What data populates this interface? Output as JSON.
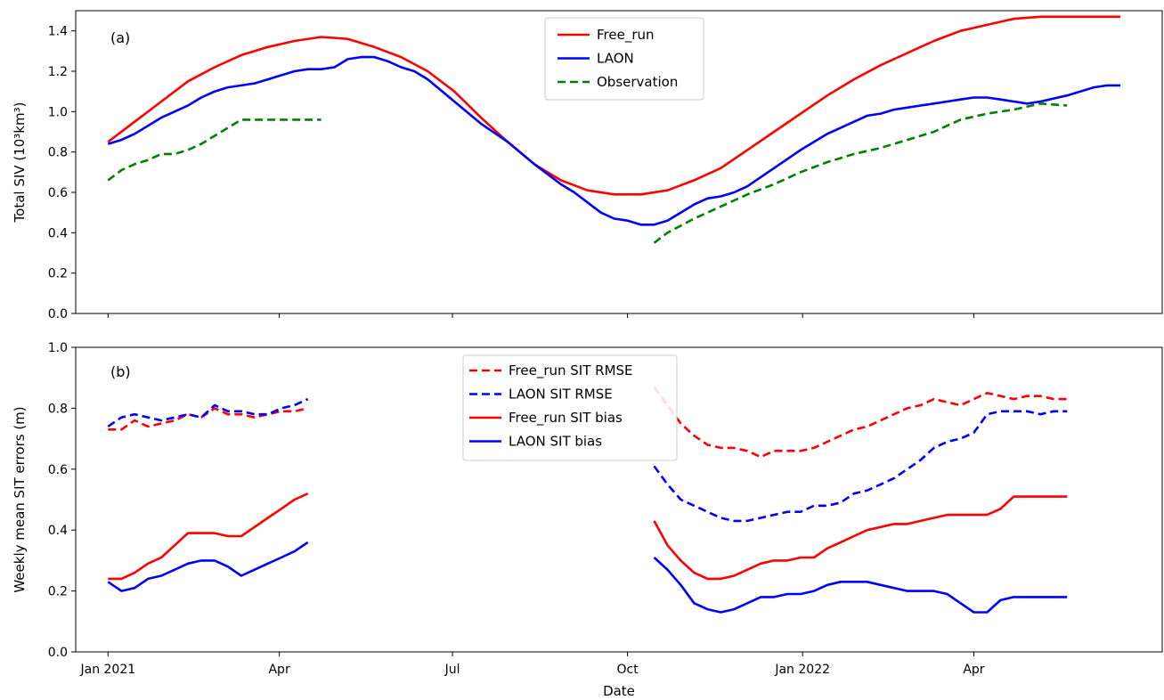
{
  "figure": {
    "xlabel": "Date",
    "x_ticks": [
      "Jan 2021",
      "Apr",
      "Jul",
      "Oct",
      "Jan 2022",
      "Apr"
    ]
  },
  "colors": {
    "free_run": "#ff0000",
    "laon": "#0000ff",
    "observation": "#008000",
    "axis": "#000000",
    "background": "#ffffff"
  },
  "chart_data": [
    {
      "type": "line",
      "panel_label": "(a)",
      "ylabel": "Total SIV (10³km³)",
      "ylim": [
        0,
        1.5
      ],
      "y_ticks": [
        "0.0",
        "0.2",
        "0.4",
        "0.6",
        "0.8",
        "1.0",
        "1.2",
        "1.4"
      ],
      "x_units": "days since Jan 1 2021",
      "xlim": [
        -17,
        554
      ],
      "grid": false,
      "legend_position": "top-center",
      "series": [
        {
          "name": "Free_run",
          "color": "#ff0000",
          "style": "solid",
          "x": [
            0,
            14,
            28,
            42,
            56,
            70,
            84,
            98,
            112,
            126,
            140,
            154,
            168,
            182,
            196,
            210,
            224,
            238,
            252,
            266,
            280,
            294,
            308,
            322,
            336,
            350,
            364,
            378,
            392,
            406,
            420,
            434,
            448,
            462,
            476,
            490,
            504,
            518,
            532
          ],
          "y": [
            0.85,
            0.95,
            1.05,
            1.15,
            1.22,
            1.28,
            1.32,
            1.35,
            1.37,
            1.36,
            1.32,
            1.27,
            1.2,
            1.1,
            0.97,
            0.85,
            0.74,
            0.66,
            0.61,
            0.59,
            0.59,
            0.61,
            0.66,
            0.72,
            0.81,
            0.9,
            0.99,
            1.08,
            1.16,
            1.23,
            1.29,
            1.35,
            1.4,
            1.43,
            1.46,
            1.47,
            1.47,
            1.47,
            1.47
          ]
        },
        {
          "name": "LAON",
          "color": "#0000ff",
          "style": "solid",
          "x": [
            0,
            7,
            14,
            21,
            28,
            35,
            42,
            49,
            56,
            63,
            70,
            77,
            84,
            91,
            98,
            105,
            112,
            119,
            126,
            133,
            140,
            147,
            154,
            161,
            168,
            182,
            196,
            210,
            224,
            231,
            238,
            245,
            252,
            259,
            266,
            273,
            280,
            287,
            294,
            301,
            308,
            315,
            322,
            329,
            336,
            350,
            364,
            378,
            392,
            399,
            406,
            413,
            420,
            427,
            434,
            441,
            448,
            455,
            462,
            469,
            476,
            483,
            490,
            504,
            511,
            518,
            525,
            532
          ],
          "y": [
            0.84,
            0.86,
            0.89,
            0.93,
            0.97,
            1.0,
            1.03,
            1.07,
            1.1,
            1.12,
            1.13,
            1.14,
            1.16,
            1.18,
            1.2,
            1.21,
            1.21,
            1.22,
            1.26,
            1.27,
            1.27,
            1.25,
            1.22,
            1.2,
            1.16,
            1.05,
            0.94,
            0.85,
            0.74,
            0.69,
            0.64,
            0.6,
            0.55,
            0.5,
            0.47,
            0.46,
            0.44,
            0.44,
            0.46,
            0.5,
            0.54,
            0.57,
            0.58,
            0.6,
            0.63,
            0.72,
            0.81,
            0.89,
            0.95,
            0.98,
            0.99,
            1.01,
            1.02,
            1.03,
            1.04,
            1.05,
            1.06,
            1.07,
            1.07,
            1.06,
            1.05,
            1.04,
            1.05,
            1.08,
            1.1,
            1.12,
            1.13,
            1.13
          ]
        },
        {
          "name": "Observation",
          "color": "#008000",
          "style": "dashed",
          "segments": [
            {
              "x": [
                0,
                7,
                14,
                21,
                28,
                35,
                42,
                49,
                56,
                63,
                70,
                77,
                84,
                91,
                98,
                105,
                112
              ],
              "y": [
                0.66,
                0.71,
                0.74,
                0.76,
                0.79,
                0.79,
                0.81,
                0.84,
                0.88,
                0.92,
                0.96,
                0.96,
                0.96,
                0.96,
                0.96,
                0.96,
                0.96
              ]
            },
            {
              "x": [
                287,
                294,
                308,
                322,
                336,
                350,
                364,
                378,
                392,
                406,
                420,
                434,
                448,
                462,
                476,
                490,
                504
              ],
              "y": [
                0.35,
                0.4,
                0.47,
                0.53,
                0.59,
                0.64,
                0.7,
                0.75,
                0.79,
                0.82,
                0.86,
                0.9,
                0.96,
                0.99,
                1.01,
                1.04,
                1.03
              ]
            }
          ]
        }
      ]
    },
    {
      "type": "line",
      "panel_label": "(b)",
      "ylabel": "Weekly mean SIT errors (m)",
      "ylim": [
        0,
        1.0
      ],
      "y_ticks": [
        "0.0",
        "0.2",
        "0.4",
        "0.6",
        "0.8",
        "1.0"
      ],
      "x_units": "days since Jan 1 2021",
      "xlim": [
        -17,
        554
      ],
      "grid": false,
      "legend_position": "top-center",
      "series": [
        {
          "name": "Free_run SIT RMSE",
          "color": "#ff0000",
          "style": "dashed",
          "segments": [
            {
              "x": [
                0,
                7,
                14,
                21,
                28,
                35,
                42,
                49,
                56,
                63,
                70,
                77,
                84,
                91,
                98,
                105
              ],
              "y": [
                0.73,
                0.73,
                0.76,
                0.74,
                0.75,
                0.76,
                0.78,
                0.77,
                0.8,
                0.78,
                0.78,
                0.77,
                0.78,
                0.79,
                0.79,
                0.8
              ]
            },
            {
              "x": [
                287,
                294,
                301,
                308,
                315,
                322,
                329,
                336,
                343,
                350,
                357,
                364,
                371,
                378,
                385,
                392,
                399,
                406,
                413,
                420,
                427,
                434,
                441,
                448,
                455,
                462,
                469,
                476,
                483,
                490,
                497,
                504
              ],
              "y": [
                0.87,
                0.81,
                0.75,
                0.71,
                0.68,
                0.67,
                0.67,
                0.66,
                0.64,
                0.66,
                0.66,
                0.66,
                0.67,
                0.69,
                0.71,
                0.73,
                0.74,
                0.76,
                0.78,
                0.8,
                0.81,
                0.83,
                0.82,
                0.81,
                0.83,
                0.85,
                0.84,
                0.83,
                0.84,
                0.84,
                0.83,
                0.83
              ]
            }
          ]
        },
        {
          "name": "LAON SIT RMSE",
          "color": "#0000ff",
          "style": "dashed",
          "segments": [
            {
              "x": [
                0,
                7,
                14,
                21,
                28,
                35,
                42,
                49,
                56,
                63,
                70,
                77,
                84,
                91,
                98,
                105
              ],
              "y": [
                0.74,
                0.77,
                0.78,
                0.77,
                0.76,
                0.77,
                0.78,
                0.77,
                0.81,
                0.79,
                0.79,
                0.78,
                0.78,
                0.8,
                0.81,
                0.83
              ]
            },
            {
              "x": [
                287,
                294,
                301,
                308,
                315,
                322,
                329,
                336,
                343,
                350,
                357,
                364,
                371,
                378,
                385,
                392,
                399,
                406,
                413,
                420,
                427,
                434,
                441,
                448,
                455,
                462,
                469,
                476,
                483,
                490,
                497,
                504
              ],
              "y": [
                0.61,
                0.55,
                0.5,
                0.48,
                0.46,
                0.44,
                0.43,
                0.43,
                0.44,
                0.45,
                0.46,
                0.46,
                0.48,
                0.48,
                0.49,
                0.52,
                0.53,
                0.55,
                0.57,
                0.6,
                0.63,
                0.67,
                0.69,
                0.7,
                0.72,
                0.78,
                0.79,
                0.79,
                0.79,
                0.78,
                0.79,
                0.79
              ]
            }
          ]
        },
        {
          "name": "Free_run SIT bias",
          "color": "#ff0000",
          "style": "solid",
          "segments": [
            {
              "x": [
                0,
                7,
                14,
                21,
                28,
                35,
                42,
                49,
                56,
                63,
                70,
                77,
                84,
                91,
                98,
                105
              ],
              "y": [
                0.24,
                0.24,
                0.26,
                0.29,
                0.31,
                0.35,
                0.39,
                0.39,
                0.39,
                0.38,
                0.38,
                0.41,
                0.44,
                0.47,
                0.5,
                0.52
              ]
            },
            {
              "x": [
                287,
                294,
                301,
                308,
                315,
                322,
                329,
                336,
                343,
                350,
                357,
                364,
                371,
                378,
                385,
                392,
                399,
                406,
                413,
                420,
                427,
                434,
                441,
                448,
                455,
                462,
                469,
                476,
                483,
                490,
                497,
                504
              ],
              "y": [
                0.43,
                0.35,
                0.3,
                0.26,
                0.24,
                0.24,
                0.25,
                0.27,
                0.29,
                0.3,
                0.3,
                0.31,
                0.31,
                0.34,
                0.36,
                0.38,
                0.4,
                0.41,
                0.42,
                0.42,
                0.43,
                0.44,
                0.45,
                0.45,
                0.45,
                0.45,
                0.47,
                0.51,
                0.51,
                0.51,
                0.51,
                0.51
              ]
            }
          ]
        },
        {
          "name": "LAON SIT bias",
          "color": "#0000ff",
          "style": "solid",
          "segments": [
            {
              "x": [
                0,
                7,
                14,
                21,
                28,
                35,
                42,
                49,
                56,
                63,
                70,
                77,
                84,
                91,
                98,
                105
              ],
              "y": [
                0.23,
                0.2,
                0.21,
                0.24,
                0.25,
                0.27,
                0.29,
                0.3,
                0.3,
                0.28,
                0.25,
                0.27,
                0.29,
                0.31,
                0.33,
                0.36
              ]
            },
            {
              "x": [
                287,
                294,
                301,
                308,
                315,
                322,
                329,
                336,
                343,
                350,
                357,
                364,
                371,
                378,
                385,
                392,
                399,
                406,
                413,
                420,
                427,
                434,
                441,
                448,
                455,
                462,
                469,
                476,
                483,
                490,
                497,
                504
              ],
              "y": [
                0.31,
                0.27,
                0.22,
                0.16,
                0.14,
                0.13,
                0.14,
                0.16,
                0.18,
                0.18,
                0.19,
                0.19,
                0.2,
                0.22,
                0.23,
                0.23,
                0.23,
                0.22,
                0.21,
                0.2,
                0.2,
                0.2,
                0.19,
                0.16,
                0.13,
                0.13,
                0.17,
                0.18,
                0.18,
                0.18,
                0.18,
                0.18
              ]
            }
          ]
        }
      ]
    }
  ]
}
